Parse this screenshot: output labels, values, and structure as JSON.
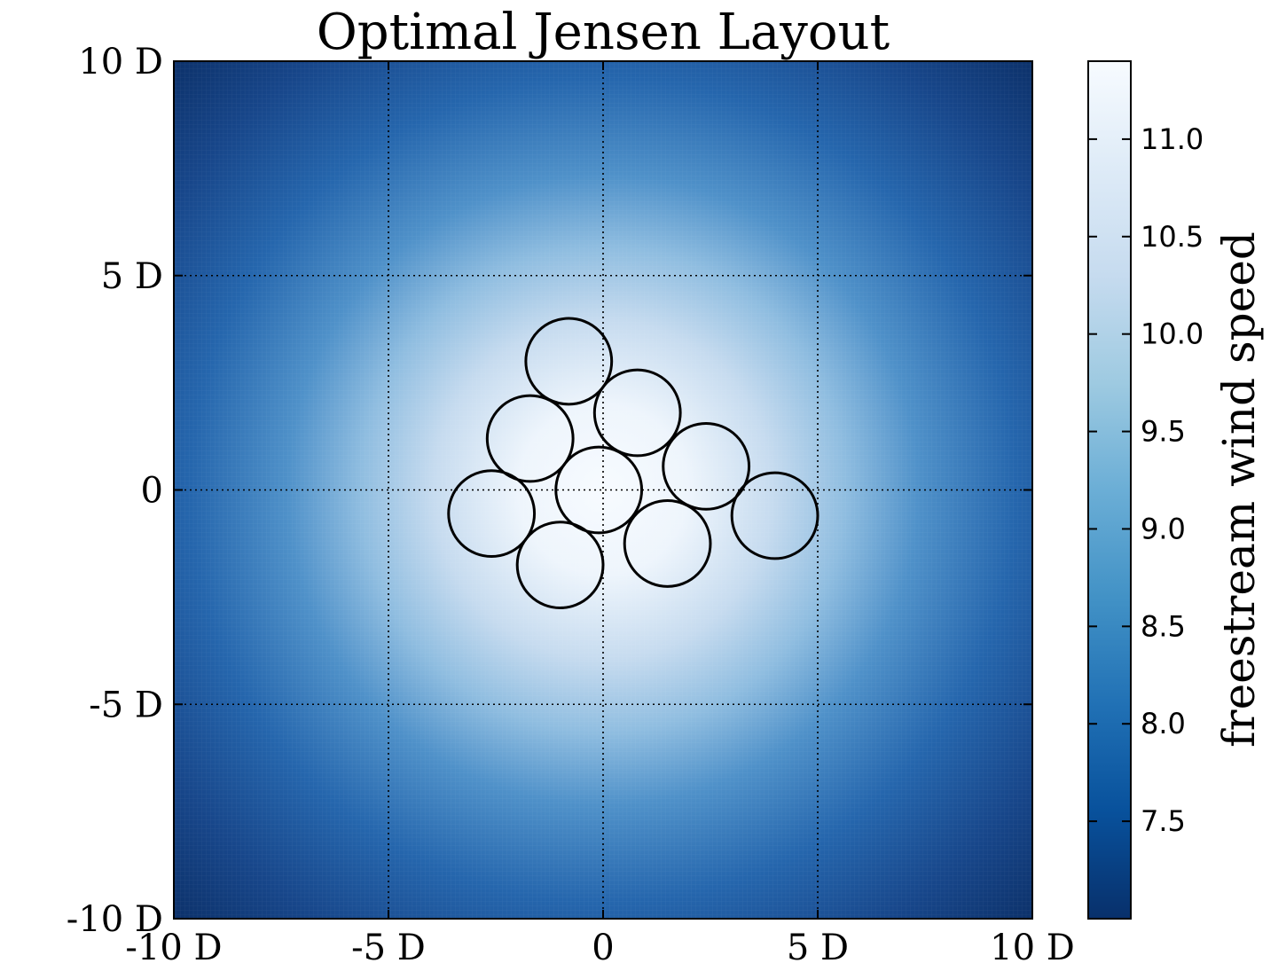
{
  "chart_data": {
    "type": "heatmap",
    "title": "Optimal Jensen Layout",
    "xlabel": "",
    "ylabel": "",
    "xlim": [
      -10,
      10
    ],
    "ylim": [
      -10,
      10
    ],
    "grid": true,
    "x_ticks": [
      {
        "value": -10,
        "label": "-10 D"
      },
      {
        "value": -5,
        "label": "-5 D"
      },
      {
        "value": 0,
        "label": "0"
      },
      {
        "value": 5,
        "label": "5 D"
      },
      {
        "value": 10,
        "label": "10 D"
      }
    ],
    "y_ticks": [
      {
        "value": -10,
        "label": "-10 D"
      },
      {
        "value": -5,
        "label": "-5 D"
      },
      {
        "value": 0,
        "label": "0"
      },
      {
        "value": 5,
        "label": "5 D"
      },
      {
        "value": 10,
        "label": "10 D"
      }
    ],
    "colorbar": {
      "label": "freestream wind speed",
      "range": [
        7.0,
        11.4
      ],
      "ticks": [
        "7.5",
        "8.0",
        "8.5",
        "9.0",
        "9.5",
        "10.0",
        "10.5",
        "11.0"
      ],
      "colormap": "Blues_r",
      "color_low": "#08306b",
      "color_high": "#f7fbff"
    },
    "field": {
      "center": [
        0,
        0
      ],
      "peak_speed": 11.4,
      "edge_speed": 7.0
    },
    "turbines": {
      "radius": 1.0,
      "points": [
        {
          "x": -0.8,
          "y": 3.0
        },
        {
          "x": 0.8,
          "y": 1.8
        },
        {
          "x": -1.7,
          "y": 1.2
        },
        {
          "x": 2.4,
          "y": 0.55
        },
        {
          "x": -0.1,
          "y": 0.0
        },
        {
          "x": -2.6,
          "y": -0.55
        },
        {
          "x": 4.0,
          "y": -0.6
        },
        {
          "x": 1.5,
          "y": -1.25
        },
        {
          "x": -1.0,
          "y": -1.75
        }
      ]
    }
  }
}
